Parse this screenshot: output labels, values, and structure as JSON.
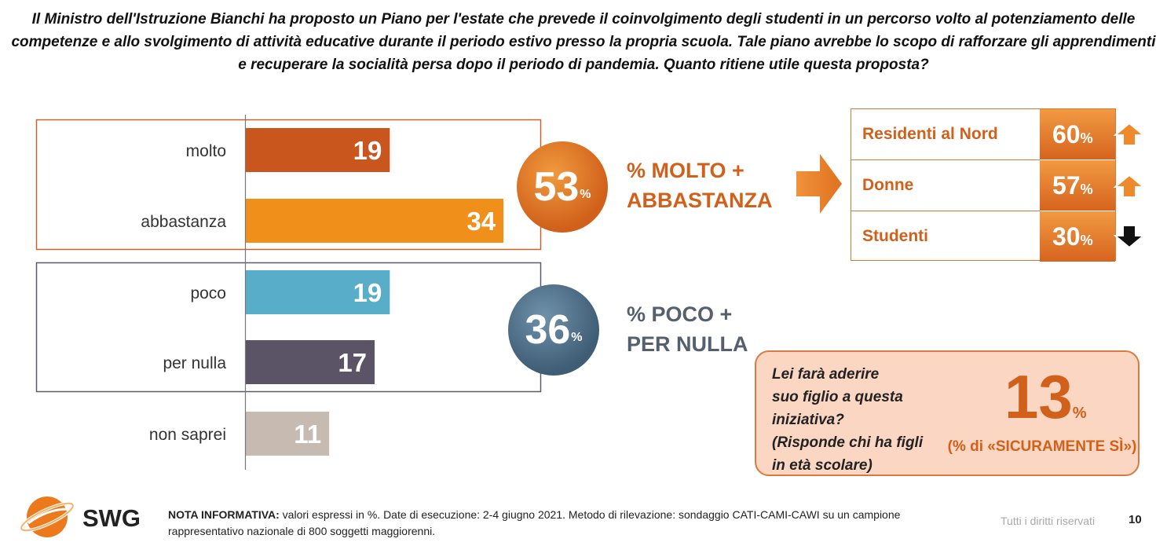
{
  "question": "Il Ministro dell'Istruzione Bianchi ha proposto un Piano per l'estate che prevede il coinvolgimento degli studenti in un percorso volto al potenziamento delle competenze e allo svolgimento di attività educative durante il periodo estivo presso la propria scuola. Tale piano avrebbe lo scopo di rafforzare gli apprendimenti e recuperare la socialità persa dopo il periodo di pandemia. Quanto ritiene utile questa proposta?",
  "chart_data": {
    "type": "bar",
    "orientation": "horizontal",
    "categories": [
      "molto",
      "abbastanza",
      "poco",
      "per nulla",
      "non saprei"
    ],
    "values": [
      19,
      34,
      19,
      17,
      11
    ],
    "colors": [
      "#c9561c",
      "#f0901a",
      "#58aec9",
      "#5b5466",
      "#c7bab0"
    ],
    "unit": "%"
  },
  "summary": {
    "positive": {
      "value": "53",
      "unit": "%",
      "label_line1": "% MOLTO +",
      "label_line2": "ABBASTANZA"
    },
    "negative": {
      "value": "36",
      "unit": "%",
      "label_line1": "% POCO +",
      "label_line2": "PER NULLA"
    }
  },
  "segments": [
    {
      "label": "Residenti al Nord",
      "value": "60",
      "unit": "%",
      "trend": "up"
    },
    {
      "label": "Donne",
      "value": "57",
      "unit": "%",
      "trend": "up"
    },
    {
      "label": "Studenti",
      "value": "30",
      "unit": "%",
      "trend": "down"
    }
  ],
  "info_box": {
    "question_lines": [
      "Lei farà aderire",
      "suo figlio a questa",
      "iniziativa?",
      "(Risponde chi ha figli",
      "in età scolare)"
    ],
    "value": "13",
    "unit": "%",
    "note": "(% di «SICURAMENTE SÌ»)"
  },
  "footer": {
    "logo_text": "SWG",
    "note_label": "NOTA INFORMATIVA:",
    "note_text": " valori espressi in %. Date di esecuzione: 2-4 giugno 2021. Metodo di rilevazione: sondaggio CATI-CAMI-CAWI su un campione rappresentativo nazionale di 800 soggetti maggiorenni.",
    "rights": "Tutti i diritti riservati",
    "page_number": "10"
  },
  "colors": {
    "orange_accent": "#d0601a",
    "slate_accent": "#55606e",
    "info_bg": "#fbd6c3"
  }
}
